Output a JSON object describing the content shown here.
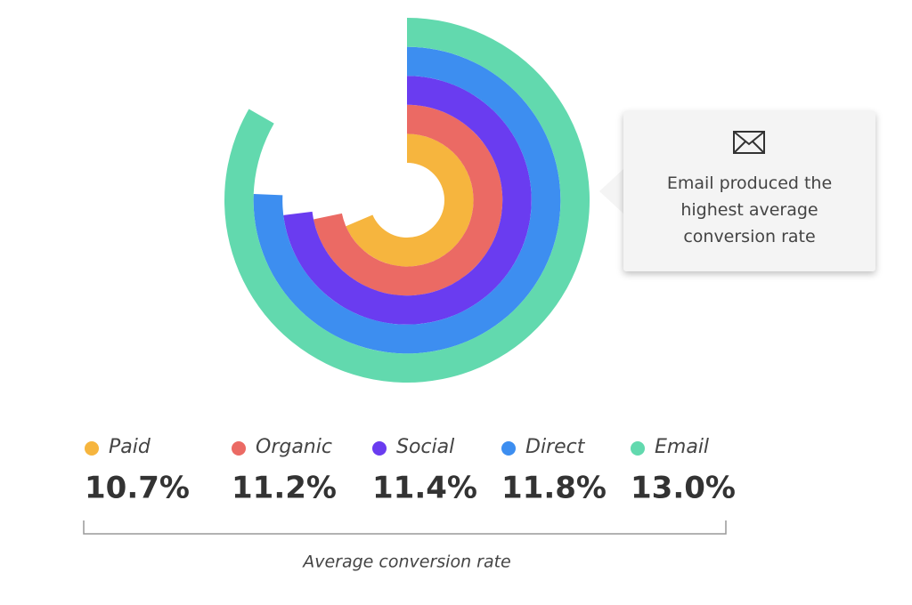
{
  "chart_data": {
    "type": "radial_bar",
    "categories": [
      "Paid",
      "Organic",
      "Social",
      "Direct",
      "Email"
    ],
    "values": [
      10.7,
      11.2,
      11.4,
      11.8,
      13.0
    ],
    "value_labels": [
      "10.7%",
      "11.2%",
      "11.4%",
      "11.8%",
      "13.0%"
    ],
    "colors": [
      "#f6b53e",
      "#eb6a64",
      "#6a3cf0",
      "#3d8ef0",
      "#62d9ae"
    ],
    "x_label": "Average conversion rate",
    "annotation": "Email produced the highest average conversion rate"
  }
}
